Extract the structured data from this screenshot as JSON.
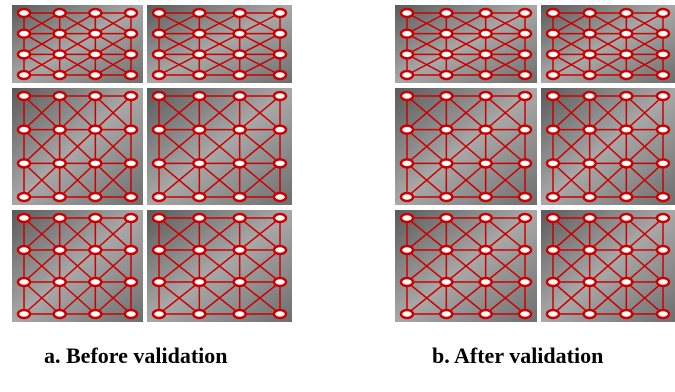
{
  "captions": {
    "left": "a. Before validation",
    "right": "b. After validation"
  }
}
